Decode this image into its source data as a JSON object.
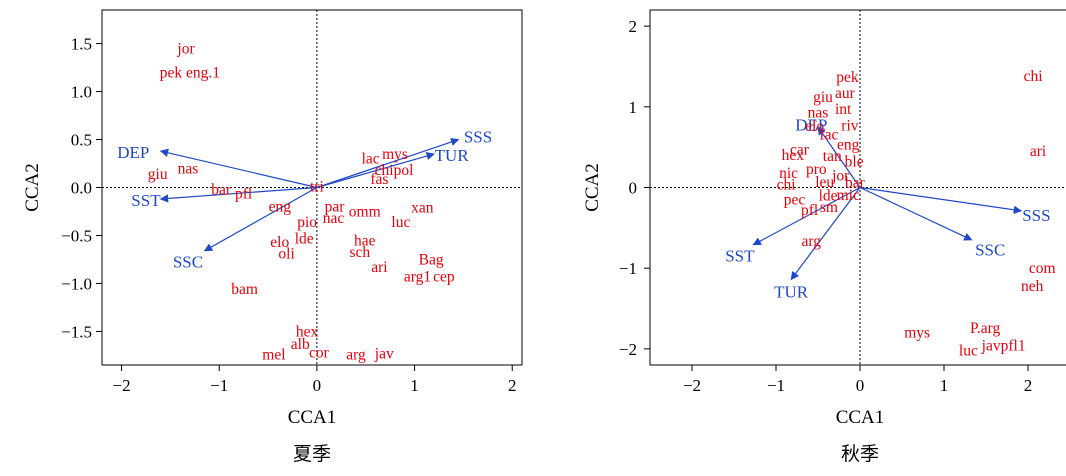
{
  "colors": {
    "species": "#e8000b",
    "variables": "#1f48c7",
    "axis": "#000000"
  },
  "chart_data": [
    {
      "type": "scatter",
      "title": "夏季",
      "xlabel": "CCA1",
      "ylabel": "CCA2",
      "xlim": [
        -2.2,
        2.1
      ],
      "ylim": [
        -1.85,
        1.85
      ],
      "xticks": [
        -2,
        -1,
        0,
        1,
        2
      ],
      "xtick_labels": [
        "−2",
        "−1",
        "0",
        "1",
        "2"
      ],
      "yticks": [
        -1.5,
        -1.0,
        -0.5,
        0.0,
        0.5,
        1.0,
        1.5
      ],
      "ytick_labels": [
        "−1.5",
        "−1.0",
        "−0.5",
        "0.0",
        "0.5",
        "1.0",
        "1.5"
      ],
      "zero_lines": true,
      "species": [
        {
          "label": "jor",
          "x": -1.34,
          "y": 1.45
        },
        {
          "label": "pek eng.1",
          "x": -1.3,
          "y": 1.2
        },
        {
          "label": "giu",
          "x": -1.63,
          "y": 0.14
        },
        {
          "label": "nas",
          "x": -1.32,
          "y": 0.2
        },
        {
          "label": "bar",
          "x": -0.98,
          "y": -0.02
        },
        {
          "label": "pfl",
          "x": -0.75,
          "y": -0.06
        },
        {
          "label": "eng",
          "x": -0.38,
          "y": -0.2
        },
        {
          "label": "pio",
          "x": -0.1,
          "y": -0.36
        },
        {
          "label": "nac",
          "x": 0.17,
          "y": -0.32
        },
        {
          "label": "par",
          "x": 0.18,
          "y": -0.2
        },
        {
          "label": "omm",
          "x": 0.49,
          "y": -0.25
        },
        {
          "label": "lde",
          "x": -0.13,
          "y": -0.53
        },
        {
          "label": "elo",
          "x": -0.38,
          "y": -0.57
        },
        {
          "label": "oli",
          "x": -0.31,
          "y": -0.69
        },
        {
          "label": "hae",
          "x": 0.49,
          "y": -0.55
        },
        {
          "label": "sch",
          "x": 0.44,
          "y": -0.67
        },
        {
          "label": "luc",
          "x": 0.86,
          "y": -0.36
        },
        {
          "label": "xan",
          "x": 1.08,
          "y": -0.21
        },
        {
          "label": "Bag",
          "x": 1.17,
          "y": -0.75
        },
        {
          "label": "arg1",
          "x": 1.03,
          "y": -0.93
        },
        {
          "label": "cep",
          "x": 1.3,
          "y": -0.93
        },
        {
          "label": "ari",
          "x": 0.64,
          "y": -0.83
        },
        {
          "label": "bam",
          "x": -0.74,
          "y": -1.06
        },
        {
          "label": "hex",
          "x": -0.1,
          "y": -1.5
        },
        {
          "label": "alb",
          "x": -0.17,
          "y": -1.63
        },
        {
          "label": "mel",
          "x": -0.44,
          "y": -1.74
        },
        {
          "label": "cor",
          "x": 0.02,
          "y": -1.72
        },
        {
          "label": "arg",
          "x": 0.4,
          "y": -1.74
        },
        {
          "label": "jav",
          "x": 0.69,
          "y": -1.73
        },
        {
          "label": "lac",
          "x": 0.55,
          "y": 0.3
        },
        {
          "label": "mys",
          "x": 0.8,
          "y": 0.35
        },
        {
          "label": "chipol",
          "x": 0.79,
          "y": 0.18
        },
        {
          "label": "fas",
          "x": 0.64,
          "y": 0.09
        },
        {
          "label": "tri",
          "x": 0.0,
          "y": 0.01
        }
      ],
      "vectors": [
        {
          "label": "DEP",
          "x": -1.6,
          "y": 0.38,
          "lx": -1.88,
          "ly": 0.37
        },
        {
          "label": "SST",
          "x": -1.6,
          "y": -0.12,
          "lx": -1.75,
          "ly": -0.13
        },
        {
          "label": "SSC",
          "x": -1.15,
          "y": -0.66,
          "lx": -1.32,
          "ly": -0.77
        },
        {
          "label": "SSS",
          "x": 1.45,
          "y": 0.5,
          "lx": 1.65,
          "ly": 0.53
        },
        {
          "label": "TUR",
          "x": 1.2,
          "y": 0.35,
          "lx": 1.38,
          "ly": 0.34
        }
      ]
    },
    {
      "type": "scatter",
      "title": "秋季",
      "xlabel": "CCA1",
      "ylabel": "CCA2",
      "xlim": [
        -2.5,
        2.5
      ],
      "ylim": [
        -2.2,
        2.2
      ],
      "xticks": [
        -2,
        -1,
        0,
        1,
        2
      ],
      "xtick_labels": [
        "−2",
        "−1",
        "0",
        "1",
        "2"
      ],
      "yticks": [
        -2,
        -1,
        0,
        1,
        2
      ],
      "ytick_labels": [
        "−2",
        "−1",
        "0",
        "1",
        "2"
      ],
      "zero_lines": true,
      "species": [
        {
          "label": "pek",
          "x": -0.15,
          "y": 1.37
        },
        {
          "label": "giu",
          "x": -0.44,
          "y": 1.12
        },
        {
          "label": "aur",
          "x": -0.18,
          "y": 1.17
        },
        {
          "label": "int",
          "x": -0.2,
          "y": 0.97
        },
        {
          "label": "nas",
          "x": -0.5,
          "y": 0.93
        },
        {
          "label": "elo",
          "x": -0.54,
          "y": 0.76
        },
        {
          "label": "riv",
          "x": -0.12,
          "y": 0.77
        },
        {
          "label": "fac",
          "x": -0.37,
          "y": 0.66
        },
        {
          "label": "car",
          "x": -0.72,
          "y": 0.47
        },
        {
          "label": "eng",
          "x": -0.14,
          "y": 0.53
        },
        {
          "label": "hex",
          "x": -0.8,
          "y": 0.4
        },
        {
          "label": "tan",
          "x": -0.33,
          "y": 0.39
        },
        {
          "label": "ble",
          "x": -0.07,
          "y": 0.32
        },
        {
          "label": "pro",
          "x": -0.52,
          "y": 0.23
        },
        {
          "label": "nic",
          "x": -0.85,
          "y": 0.18
        },
        {
          "label": "jor",
          "x": -0.23,
          "y": 0.15
        },
        {
          "label": "leu",
          "x": -0.42,
          "y": 0.07
        },
        {
          "label": "bar",
          "x": -0.06,
          "y": 0.06
        },
        {
          "label": "chi",
          "x": -0.88,
          "y": 0.04
        },
        {
          "label": "pec",
          "x": -0.78,
          "y": -0.15
        },
        {
          "label": "lde",
          "x": -0.38,
          "y": -0.1
        },
        {
          "label": "mic",
          "x": -0.14,
          "y": -0.09
        },
        {
          "label": "pfl",
          "x": -0.6,
          "y": -0.28
        },
        {
          "label": "sm",
          "x": -0.37,
          "y": -0.24
        },
        {
          "label": "arg",
          "x": -0.58,
          "y": -0.66
        },
        {
          "label": "chi",
          "x": 2.06,
          "y": 1.38
        },
        {
          "label": "ari",
          "x": 2.12,
          "y": 0.45
        },
        {
          "label": "com",
          "x": 2.17,
          "y": -1.0
        },
        {
          "label": "neh",
          "x": 2.05,
          "y": -1.22
        },
        {
          "label": "mys",
          "x": 0.68,
          "y": -1.8
        },
        {
          "label": "P.arg",
          "x": 1.49,
          "y": -1.74
        },
        {
          "label": "luc",
          "x": 1.29,
          "y": -2.02
        },
        {
          "label": "javpfl1",
          "x": 1.71,
          "y": -1.96
        }
      ],
      "vectors": [
        {
          "label": "DEP",
          "x": -0.5,
          "y": 0.75,
          "lx": -0.58,
          "ly": 0.78
        },
        {
          "label": "SST",
          "x": -1.27,
          "y": -0.71,
          "lx": -1.43,
          "ly": -0.84
        },
        {
          "label": "SSC",
          "x": 1.33,
          "y": -0.65,
          "lx": 1.55,
          "ly": -0.77
        },
        {
          "label": "SSS",
          "x": 1.92,
          "y": -0.29,
          "lx": 2.1,
          "ly": -0.34
        },
        {
          "label": "TUR",
          "x": -0.82,
          "y": -1.14,
          "lx": -0.82,
          "ly": -1.29
        }
      ]
    }
  ]
}
